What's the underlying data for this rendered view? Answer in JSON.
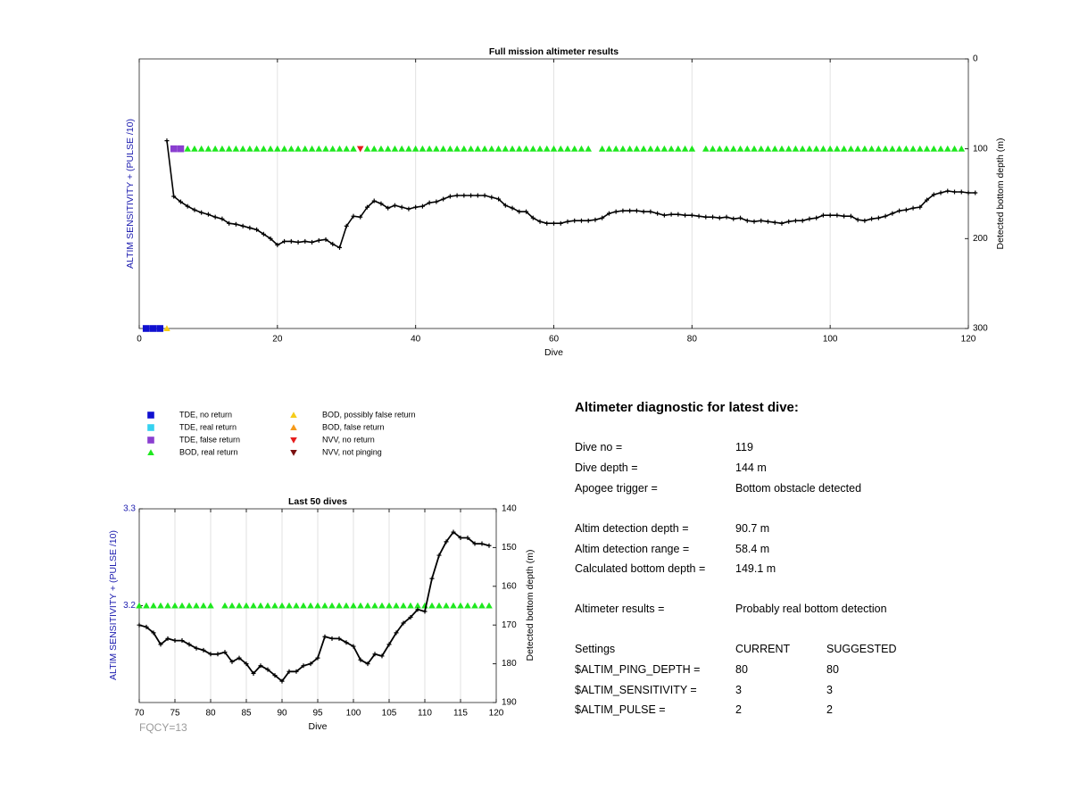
{
  "colors": {
    "tde_no_return": "#1010d0",
    "tde_real_return": "#35d2f0",
    "tde_false_return": "#8a3fd0",
    "bod_real_return": "#1ee81e",
    "bod_possibly_false": "#f5cc1a",
    "bod_false_return": "#f59a1a",
    "nvv_no_return": "#e61c1c",
    "nvv_not_pinging": "#7a1010",
    "depth_line": "#000000",
    "left_axis_label": "#2020b0",
    "grid": "#e2e2e2"
  },
  "legend": [
    {
      "key": "tde_no_return",
      "label": "TDE, no return",
      "marker": "square"
    },
    {
      "key": "tde_real_return",
      "label": "TDE, real return",
      "marker": "square"
    },
    {
      "key": "tde_false_return",
      "label": "TDE, false return",
      "marker": "square"
    },
    {
      "key": "bod_real_return",
      "label": "BOD, real return",
      "marker": "triangle-up"
    },
    {
      "key": "bod_possibly_false",
      "label": "BOD, possibly false return",
      "marker": "triangle-up"
    },
    {
      "key": "bod_false_return",
      "label": "BOD, false return",
      "marker": "triangle-up"
    },
    {
      "key": "nvv_no_return",
      "label": "NVV, no return",
      "marker": "triangle-down"
    },
    {
      "key": "nvv_not_pinging",
      "label": "NVV, not pinging",
      "marker": "triangle-down"
    }
  ],
  "chart_data": [
    {
      "id": "full",
      "type": "line",
      "title": "Full mission altimeter results",
      "xlabel": "Dive",
      "ylabel_left": "ALTIM SENSITIVITY + (PULSE /10)",
      "ylabel_right": "Detected bottom depth (m)",
      "xlim": [
        0,
        120
      ],
      "xticks": [
        0,
        20,
        40,
        60,
        80,
        100,
        120
      ],
      "ylim_right": [
        0,
        300
      ],
      "yticks_right": [
        0,
        100,
        200,
        300
      ],
      "right_axis_reversed": true,
      "grid_x": true,
      "markers": [
        {
          "type": "tde_no_return",
          "dives": [
            1,
            2,
            3
          ],
          "depth": 300
        },
        {
          "type": "bod_possibly_false",
          "dives": [
            4
          ],
          "depth": 300
        },
        {
          "type": "tde_false_return",
          "dives": [
            5,
            6
          ],
          "depth": 100
        },
        {
          "type": "nvv_no_return",
          "dives": [
            32
          ],
          "depth": 100
        },
        {
          "type": "bod_real_return",
          "ranges": [
            [
              7,
              31
            ],
            [
              33,
              65
            ],
            [
              67,
              80
            ],
            [
              82,
              119
            ]
          ],
          "depth": 100
        }
      ],
      "series": [
        {
          "key": "bottom_depth",
          "x_start": 4,
          "values": [
            91,
            153,
            159,
            164,
            168,
            171,
            173,
            176,
            178,
            183,
            184,
            186,
            188,
            190,
            195,
            200,
            207,
            203,
            203,
            204,
            203,
            204,
            202,
            201,
            206,
            210,
            186,
            175,
            176,
            165,
            158,
            161,
            166,
            163,
            165,
            167,
            165,
            164,
            160,
            159,
            156,
            153,
            152,
            152,
            152,
            152,
            152,
            154,
            156,
            163,
            166,
            170,
            170,
            177,
            181,
            183,
            183,
            183,
            181,
            180,
            180,
            180,
            179,
            177,
            172,
            170,
            169,
            169,
            169,
            170,
            170,
            172,
            174,
            173,
            173,
            174,
            174,
            175,
            176,
            176,
            177,
            176,
            178,
            177,
            180,
            181,
            180,
            181,
            182,
            183,
            181,
            180,
            180,
            178,
            177,
            174,
            174,
            174,
            175,
            175,
            179,
            180,
            178,
            177,
            175,
            172,
            169,
            168,
            166,
            165,
            157,
            151,
            149,
            147,
            148,
            148,
            149,
            149
          ]
        }
      ]
    },
    {
      "id": "last50",
      "type": "line",
      "title": "Last 50 dives",
      "xlabel": "Dive",
      "ylabel_left": "ALTIM SENSITIVITY + (PULSE /10)",
      "ylabel_right": "Detected bottom depth (m)",
      "xlim": [
        70,
        120
      ],
      "xticks": [
        70,
        75,
        80,
        85,
        90,
        95,
        100,
        105,
        110,
        115,
        120
      ],
      "ylim_left": [
        3.1,
        3.3
      ],
      "yticks_left": [
        3.2,
        3.3
      ],
      "ylim_right": [
        140,
        190
      ],
      "yticks_right": [
        140,
        150,
        160,
        170,
        180,
        190
      ],
      "right_axis_reversed": true,
      "grid_x": true,
      "markers": [
        {
          "type": "bod_real_return",
          "ranges": [
            [
              70,
              80
            ],
            [
              82,
              119
            ]
          ],
          "sensitivity": 3.2
        }
      ],
      "series": [
        {
          "key": "bottom_depth",
          "x_start": 70,
          "values": [
            170,
            170.5,
            172,
            175,
            173.5,
            174,
            174,
            175,
            176,
            176.5,
            177.5,
            177.5,
            177,
            179.5,
            178.5,
            180,
            182.5,
            180.5,
            181.5,
            183,
            184.5,
            182,
            182,
            180.5,
            180,
            178.5,
            173,
            173.5,
            173.5,
            174.5,
            175.5,
            179,
            180,
            177.5,
            178,
            175,
            172,
            169.5,
            168,
            166,
            166.5,
            158,
            152,
            148.5,
            146,
            147.5,
            147.5,
            149,
            149,
            149.5
          ]
        }
      ]
    }
  ],
  "fqcy": "FQCY=13",
  "diagnostic": {
    "title": "Altimeter diagnostic for latest dive:",
    "rows": [
      {
        "label": "Dive no =",
        "value": "119"
      },
      {
        "label": "Dive depth =",
        "value": "144 m"
      },
      {
        "label": "Apogee trigger =",
        "value": "Bottom obstacle detected"
      },
      {
        "label": "Altim detection depth =",
        "value": "90.7 m"
      },
      {
        "label": "Altim detection range =",
        "value": "58.4 m"
      },
      {
        "label": "Calculated bottom depth =",
        "value": "149.1 m"
      },
      {
        "label": "Altimeter results =",
        "value": "Probably real bottom detection"
      }
    ],
    "settings_header": {
      "label": "Settings",
      "current": "CURRENT",
      "suggested": "SUGGESTED"
    },
    "settings": [
      {
        "label": "$ALTIM_PING_DEPTH =",
        "current": "80",
        "suggested": "80"
      },
      {
        "label": "$ALTIM_SENSITIVITY =",
        "current": "3",
        "suggested": "3"
      },
      {
        "label": "$ALTIM_PULSE =",
        "current": "2",
        "suggested": "2"
      }
    ]
  }
}
